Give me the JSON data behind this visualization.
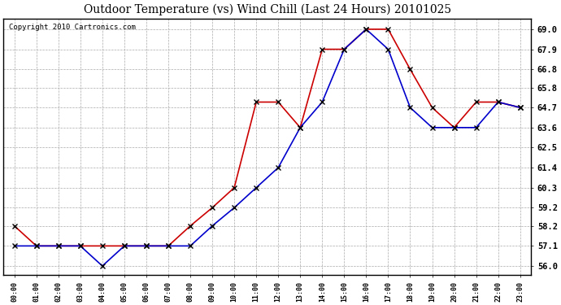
{
  "title": "Outdoor Temperature (vs) Wind Chill (Last 24 Hours) 20101025",
  "copyright": "Copyright 2010 Cartronics.com",
  "x_labels": [
    "00:00",
    "01:00",
    "02:00",
    "03:00",
    "04:00",
    "05:00",
    "06:00",
    "07:00",
    "08:00",
    "09:00",
    "10:00",
    "11:00",
    "12:00",
    "13:00",
    "14:00",
    "15:00",
    "16:00",
    "17:00",
    "18:00",
    "19:00",
    "20:00",
    "21:00",
    "22:00",
    "23:00"
  ],
  "outdoor_temp": [
    58.2,
    57.1,
    57.1,
    57.1,
    57.1,
    57.1,
    57.1,
    57.1,
    58.2,
    59.2,
    60.3,
    65.0,
    65.0,
    63.6,
    67.9,
    67.9,
    69.0,
    69.0,
    66.8,
    64.7,
    63.6,
    65.0,
    65.0,
    64.7
  ],
  "wind_chill": [
    57.1,
    57.1,
    57.1,
    57.1,
    56.0,
    57.1,
    57.1,
    57.1,
    57.1,
    58.2,
    59.2,
    60.3,
    61.4,
    63.6,
    65.0,
    67.9,
    69.0,
    67.9,
    64.7,
    63.6,
    63.6,
    63.6,
    65.0,
    64.7
  ],
  "temp_color": "#cc0000",
  "chill_color": "#0000cc",
  "ylim": [
    55.5,
    69.6
  ],
  "yticks": [
    56.0,
    57.1,
    58.2,
    59.2,
    60.3,
    61.4,
    62.5,
    63.6,
    64.7,
    65.8,
    66.8,
    67.9,
    69.0
  ],
  "background_color": "#ffffff",
  "plot_bg_color": "#ffffff",
  "grid_color": "#aaaaaa",
  "title_fontsize": 10,
  "copyright_fontsize": 6.5
}
